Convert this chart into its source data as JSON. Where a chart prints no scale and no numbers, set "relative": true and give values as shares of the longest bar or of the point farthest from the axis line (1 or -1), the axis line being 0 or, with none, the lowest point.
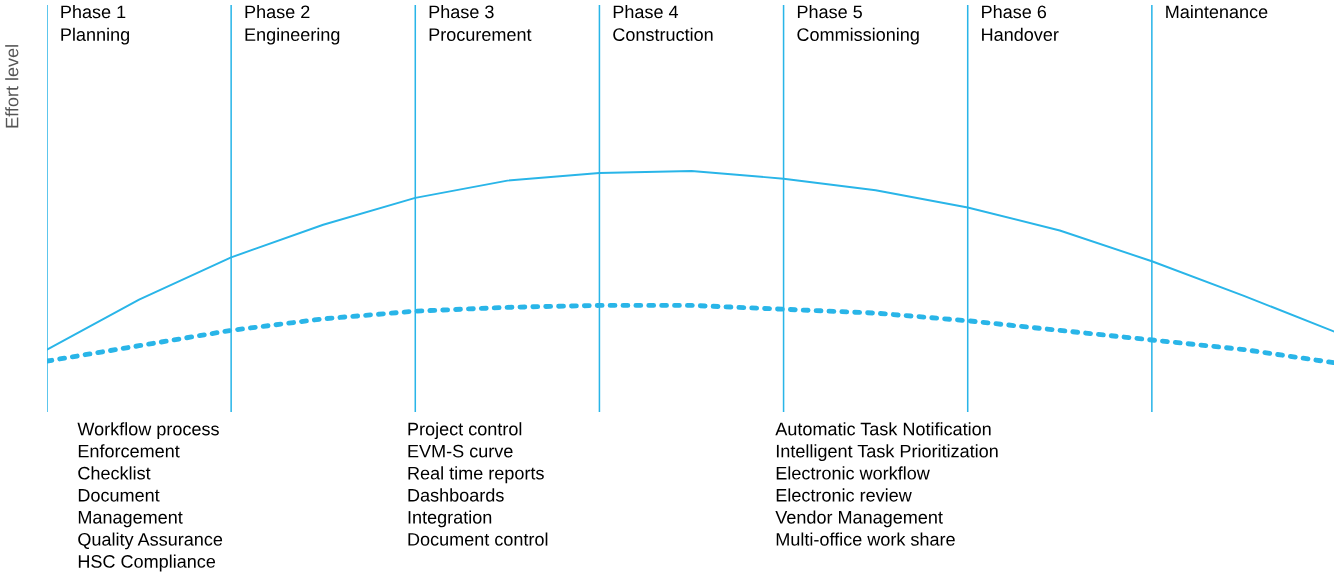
{
  "chart_data": {
    "type": "line",
    "relative": true,
    "ylabel": "Effort level",
    "categories": [
      null,
      null,
      null,
      null,
      null,
      null,
      null,
      null,
      null,
      null,
      null,
      null,
      null,
      null,
      null
    ],
    "series": [
      {
        "color": "#29b5e8",
        "line_style": "solid",
        "values": [
          0.07,
          0.33,
          0.55,
          0.72,
          0.86,
          0.95,
          0.99,
          1,
          0.96,
          0.9,
          0.81,
          0.69,
          0.53,
          0.35,
          0.16
        ]
      },
      {
        "color": "#29b5e8",
        "line_style": "dotted",
        "values": [
          0.01,
          0.09,
          0.17,
          0.23,
          0.27,
          0.29,
          0.3,
          0.3,
          0.28,
          0.26,
          0.22,
          0.17,
          0.12,
          0.07,
          0
        ]
      }
    ],
    "annotations": [
      "Phase 1\nPlanning",
      "Phase 2\nEngineering",
      "Phase 3\nProcurement",
      "Phase 4\nConstruction",
      "Phase 5\nCommissioning",
      "Phase 6\nHandover",
      "Maintenance",
      "Workflow process\nEnforcement\nChecklist\nDocument\nManagement\nQuality Assurance\nHSC Compliance",
      "Project control\nEVM-S curve\nReal time reports\nDashboards\nIntegration\nDocument control",
      "Automatic Task Notification\nIntelligent Task Prioritization\nElectronic workflow\nElectronic review\nVendor Management\nMulti-office work share"
    ],
    "grid": "x",
    "legend": false,
    "marker": "none"
  }
}
